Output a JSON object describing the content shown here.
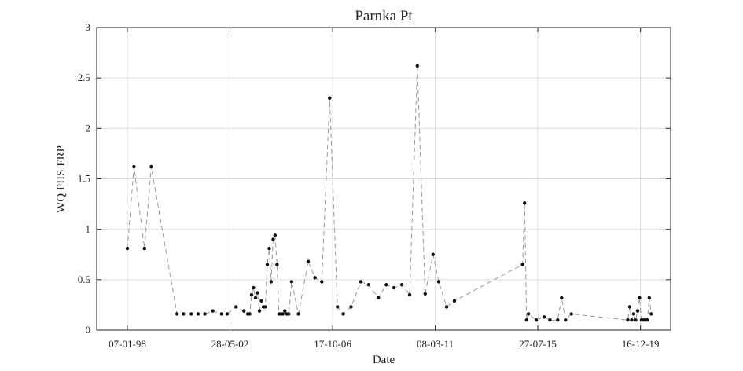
{
  "chart_data": {
    "type": "line",
    "title": "Parnka Pt",
    "xlabel": "Date",
    "ylabel": "WQ PIIS FRP",
    "x_axis": "date",
    "xlim": [
      "1996-09-15",
      "2021-03-31"
    ],
    "ylim": [
      0,
      3
    ],
    "xticks": [
      {
        "date": "1998-01-07",
        "label": "07-01-98"
      },
      {
        "date": "2002-05-28",
        "label": "28-05-02"
      },
      {
        "date": "2006-10-17",
        "label": "17-10-06"
      },
      {
        "date": "2011-03-08",
        "label": "08-03-11"
      },
      {
        "date": "2015-07-27",
        "label": "27-07-15"
      },
      {
        "date": "2019-12-16",
        "label": "16-12-19"
      }
    ],
    "yticks": [
      0,
      0.5,
      1,
      1.5,
      2,
      2.5,
      3
    ],
    "grid": true,
    "legend": "none",
    "line_color": "#9a9a9a",
    "marker_color": "#111111",
    "series": [
      {
        "x": [
          "1998-01-07",
          "1998-04-20",
          "1998-10-01",
          "1999-01-15",
          "2000-02-20",
          "2000-06-01",
          "2000-10-01",
          "2001-01-15",
          "2001-05-01",
          "2001-09-01",
          "2002-01-15",
          "2002-04-15",
          "2002-09-01",
          "2003-01-01",
          "2003-03-01",
          "2003-04-01",
          "2003-05-01",
          "2003-06-01",
          "2003-07-01",
          "2003-08-01",
          "2003-09-01",
          "2003-10-01",
          "2003-11-01",
          "2003-12-01",
          "2004-01-01",
          "2004-02-01",
          "2004-03-01",
          "2004-04-01",
          "2004-05-01",
          "2004-06-01",
          "2004-07-01",
          "2004-08-01",
          "2004-09-01",
          "2004-10-01",
          "2004-11-01",
          "2004-12-01",
          "2005-01-15",
          "2005-05-01",
          "2005-10-01",
          "2006-01-15",
          "2006-05-01",
          "2006-09-01",
          "2007-01-01",
          "2007-04-01",
          "2007-08-01",
          "2008-01-01",
          "2008-05-01",
          "2008-10-01",
          "2009-02-01",
          "2009-06-01",
          "2009-10-01",
          "2010-02-01",
          "2010-06-01",
          "2010-10-01",
          "2011-02-01",
          "2011-05-01",
          "2011-09-01",
          "2012-01-01",
          "2014-12-01",
          "2015-01-01",
          "2015-02-01",
          "2015-03-01",
          "2015-07-01",
          "2015-11-01",
          "2016-02-01",
          "2016-06-01",
          "2016-08-01",
          "2016-10-01",
          "2017-01-01",
          "2019-06-01",
          "2019-07-01",
          "2019-08-01",
          "2019-09-01",
          "2019-10-01",
          "2019-11-01",
          "2019-12-01",
          "2020-01-01",
          "2020-02-01",
          "2020-03-01",
          "2020-04-01",
          "2020-05-01",
          "2020-06-01"
        ],
        "y": [
          0.81,
          1.62,
          0.81,
          1.62,
          0.16,
          0.16,
          0.16,
          0.16,
          0.16,
          0.19,
          0.16,
          0.16,
          0.23,
          0.19,
          0.16,
          0.16,
          0.35,
          0.42,
          0.32,
          0.37,
          0.19,
          0.29,
          0.23,
          0.23,
          0.65,
          0.81,
          0.48,
          0.9,
          0.94,
          0.65,
          0.16,
          0.16,
          0.16,
          0.19,
          0.16,
          0.16,
          0.48,
          0.16,
          0.68,
          0.52,
          0.48,
          2.3,
          0.23,
          0.16,
          0.23,
          0.48,
          0.45,
          0.32,
          0.45,
          0.42,
          0.45,
          0.35,
          2.62,
          0.36,
          0.75,
          0.48,
          0.23,
          0.29,
          0.65,
          1.26,
          0.1,
          0.16,
          0.1,
          0.13,
          0.1,
          0.1,
          0.32,
          0.1,
          0.16,
          0.1,
          0.23,
          0.1,
          0.16,
          0.1,
          0.19,
          0.32,
          0.1,
          0.1,
          0.1,
          0.1,
          0.32,
          0.16
        ]
      }
    ]
  }
}
